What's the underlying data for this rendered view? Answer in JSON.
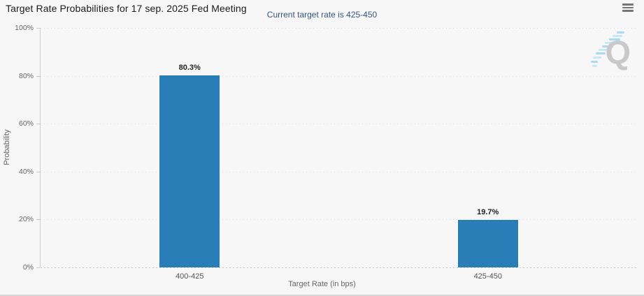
{
  "header": {
    "title": "Target Rate Probabilities for 17 sep. 2025 Fed Meeting",
    "subtitle": "Current target rate is 425-450"
  },
  "menu": {
    "icon": "hamburger-icon"
  },
  "watermark": {
    "letter": "Q"
  },
  "colors": {
    "bar": "#2a7eb8",
    "subtitle_text": "#35567c",
    "background": "#f7f7f7",
    "axis_text": "#666666",
    "gridline": "#d9d9d9"
  },
  "chart_data": {
    "type": "bar",
    "title": "Target Rate Probabilities for 17 sep. 2025 Fed Meeting",
    "subtitle": "Current target rate is 425-450",
    "categories": [
      "400-425",
      "425-450"
    ],
    "values": [
      80.3,
      19.7
    ],
    "value_labels": [
      "80.3%",
      "19.7%"
    ],
    "xlabel": "Target Rate (in bps)",
    "ylabel": "Probability",
    "ylim": [
      0,
      100
    ],
    "yticks": [
      0,
      20,
      40,
      60,
      80,
      100
    ],
    "ytick_labels": [
      "0%",
      "20%",
      "40%",
      "60%",
      "80%",
      "100%"
    ],
    "grid": "horizontal-dotted",
    "legend": "none",
    "bar_color": "#2a7eb8"
  }
}
